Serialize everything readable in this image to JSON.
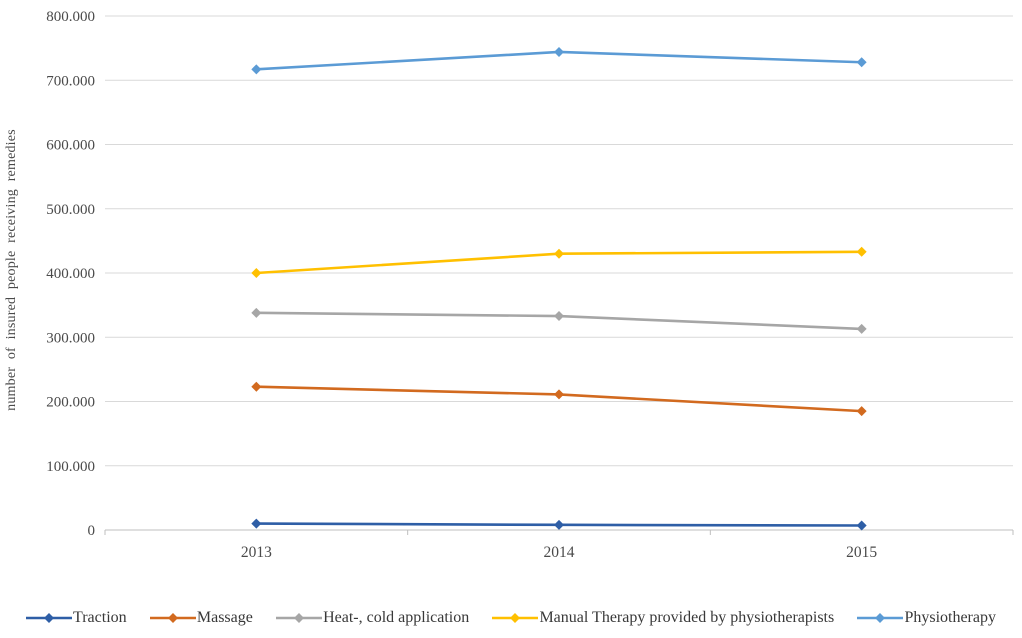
{
  "chart_data": {
    "type": "line",
    "title": "",
    "xlabel": "",
    "ylabel": "number of insured people receiving remedies",
    "categories": [
      "2013",
      "2014",
      "2015"
    ],
    "series": [
      {
        "name": "Traction",
        "color": "#2e5ea6",
        "values": [
          10000,
          8000,
          7000
        ]
      },
      {
        "name": "Massage",
        "color": "#d26a1f",
        "values": [
          223000,
          211000,
          185000
        ]
      },
      {
        "name": "Heat-, cold application",
        "color": "#a6a6a6",
        "values": [
          338000,
          333000,
          313000
        ]
      },
      {
        "name": "Manual Therapy provided by physiotherapists",
        "color": "#ffc000",
        "values": [
          400000,
          430000,
          433000
        ]
      },
      {
        "name": "Physiotherapy",
        "color": "#5b9bd5",
        "values": [
          717000,
          744000,
          728000
        ]
      }
    ],
    "ylim": [
      0,
      800000
    ],
    "ytick_step": 100000,
    "ytick_labels": [
      "0",
      "100.000",
      "200.000",
      "300.000",
      "400.000",
      "500.000",
      "600.000",
      "700.000",
      "800.000"
    ],
    "grid": true,
    "gridline_color": "#d9d9d9",
    "axis_line_color": "#bfbfbf",
    "marker": "diamond",
    "legend_position": "bottom"
  }
}
